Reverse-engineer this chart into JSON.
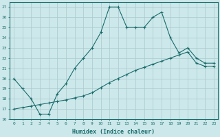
{
  "xlabel": "Humidex (Indice chaleur)",
  "ylabel": "",
  "bg_color": "#cce8ea",
  "grid_color": "#aac8cc",
  "line_color": "#1a6b6b",
  "xlim": [
    -0.5,
    23.5
  ],
  "ylim": [
    16,
    27.5
  ],
  "yticks": [
    16,
    17,
    18,
    19,
    20,
    21,
    22,
    23,
    24,
    25,
    26,
    27
  ],
  "xticks": [
    0,
    1,
    2,
    3,
    4,
    5,
    6,
    7,
    8,
    9,
    10,
    11,
    12,
    13,
    14,
    15,
    16,
    17,
    18,
    19,
    20,
    21,
    22,
    23
  ],
  "series1_x": [
    0,
    1,
    2,
    3,
    4,
    5,
    6,
    7,
    8,
    9,
    10,
    11,
    12,
    13,
    14,
    15,
    16,
    17,
    18,
    19,
    20,
    21,
    22,
    23
  ],
  "series1_y": [
    20,
    19,
    18,
    16.5,
    16.5,
    18.5,
    19.5,
    21,
    22,
    23,
    24.5,
    27,
    27,
    25,
    25,
    25,
    26,
    26.5,
    24,
    22.5,
    23,
    22,
    21.5,
    21.5
  ],
  "series2_x": [
    0,
    1,
    2,
    3,
    4,
    5,
    6,
    7,
    8,
    9,
    10,
    11,
    12,
    13,
    14,
    15,
    16,
    17,
    18,
    19,
    20,
    21,
    22,
    23
  ],
  "series2_y": [
    17.0,
    17.15,
    17.3,
    17.45,
    17.6,
    17.75,
    17.9,
    18.1,
    18.3,
    18.6,
    19.1,
    19.6,
    20.0,
    20.4,
    20.8,
    21.1,
    21.4,
    21.7,
    22.0,
    22.3,
    22.6,
    21.5,
    21.2,
    21.2
  ]
}
